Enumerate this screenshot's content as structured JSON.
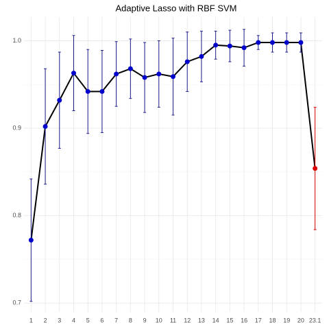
{
  "chart_data": {
    "type": "line",
    "title": "Adaptive Lasso with RBF SVM",
    "categories": [
      "1",
      "2",
      "3",
      "4",
      "5",
      "6",
      "7",
      "8",
      "9",
      "10",
      "11",
      "12",
      "13",
      "14",
      "15",
      "16",
      "17",
      "18",
      "19",
      "20",
      "23.1"
    ],
    "values": [
      0.772,
      0.902,
      0.932,
      0.963,
      0.942,
      0.942,
      0.962,
      0.968,
      0.958,
      0.962,
      0.959,
      0.976,
      0.982,
      0.995,
      0.994,
      0.992,
      0.998,
      0.998,
      0.998,
      0.998,
      0.854
    ],
    "errors": [
      0.07,
      0.066,
      0.055,
      0.043,
      0.048,
      0.047,
      0.037,
      0.034,
      0.04,
      0.038,
      0.044,
      0.034,
      0.029,
      0.016,
      0.018,
      0.021,
      0.008,
      0.011,
      0.011,
      0.011,
      0.07
    ],
    "line_color": "#000000",
    "point_colors": [
      "#0000cd",
      "#0000cd",
      "#0000cd",
      "#0000cd",
      "#0000cd",
      "#0000cd",
      "#0000cd",
      "#0000cd",
      "#0000cd",
      "#0000cd",
      "#0000cd",
      "#0000cd",
      "#0000cd",
      "#0000cd",
      "#0000cd",
      "#0000cd",
      "#0000cd",
      "#0000cd",
      "#0000cd",
      "#0000cd",
      "#e00000"
    ],
    "error_colors": [
      "#1c1c8c",
      "#1c1c8c",
      "#1c1c8c",
      "#1c1c8c",
      "#1c1c8c",
      "#1c1c8c",
      "#1c1c8c",
      "#1c1c8c",
      "#1c1c8c",
      "#1c1c8c",
      "#1c1c8c",
      "#1c1c8c",
      "#1c1c8c",
      "#1c1c8c",
      "#1c1c8c",
      "#1c1c8c",
      "#1c1c8c",
      "#1c1c8c",
      "#1c1c8c",
      "#1c1c8c",
      "#d40000"
    ],
    "ylim": [
      0.69,
      1.027
    ],
    "yticks": [
      0.7,
      0.8,
      0.9,
      {
        "value": 1,
        "label": "1.0"
      }
    ],
    "grid": true
  }
}
